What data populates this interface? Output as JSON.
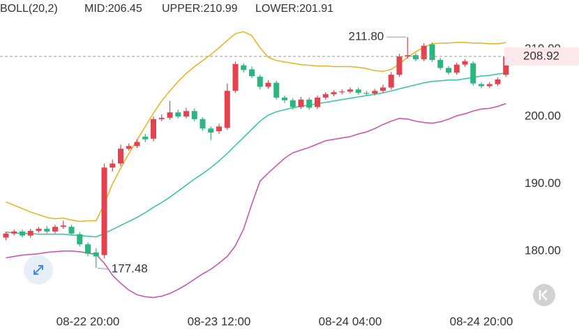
{
  "chart_data": {
    "type": "candlestick",
    "indicator": "BOLL(20,2)",
    "categories": [
      null,
      null,
      null,
      null,
      null,
      null,
      null,
      null,
      null,
      null,
      "08-22 20:00",
      null,
      null,
      null,
      null,
      null,
      null,
      null,
      null,
      null,
      null,
      null,
      null,
      null,
      null,
      null,
      "08-23 12:00",
      null,
      null,
      null,
      null,
      null,
      null,
      null,
      null,
      null,
      null,
      null,
      null,
      null,
      null,
      null,
      "08-24 04:00",
      null,
      null,
      null,
      null,
      null,
      null,
      null,
      null,
      null,
      null,
      null,
      null,
      null,
      null,
      null,
      "08-24 20:00",
      null,
      null,
      null
    ],
    "up_color": "#e3434f",
    "down_color": "#2bb67f",
    "open": [
      182.0,
      182.6,
      182.9,
      182.3,
      183.0,
      183.3,
      182.9,
      183.6,
      183.6,
      182.5,
      181.0,
      179.8,
      179.4,
      192.4,
      193.0,
      195.2,
      195.6,
      197.0,
      196.7,
      199.6,
      199.8,
      200.6,
      200.0,
      200.8,
      199.6,
      198.2,
      197.8,
      198.3,
      203.8,
      207.6,
      207.0,
      205.9,
      204.4,
      205.0,
      202.8,
      202.4,
      201.4,
      202.5,
      201.4,
      202.8,
      203.3,
      203.6,
      203.7,
      204.0,
      203.5,
      203.4,
      203.8,
      204.3,
      206.2,
      208.9,
      209.1,
      208.5,
      210.7,
      208.4,
      207.2,
      206.5,
      207.7,
      207.9,
      204.8,
      204.5,
      204.8,
      206.2
    ],
    "high": [
      182.9,
      183.2,
      183.2,
      183.3,
      183.6,
      183.7,
      183.9,
      184.5,
      183.9,
      182.8,
      181.3,
      180.4,
      193.0,
      193.6,
      195.8,
      196.0,
      196.6,
      197.4,
      200.0,
      200.3,
      202.3,
      201.0,
      201.3,
      201.2,
      199.9,
      198.5,
      198.9,
      204.9,
      208.2,
      207.9,
      207.4,
      206.2,
      205.4,
      205.3,
      203.1,
      202.7,
      202.9,
      202.8,
      203.1,
      203.6,
      203.9,
      204.0,
      204.3,
      204.3,
      203.8,
      204.1,
      204.7,
      206.6,
      209.3,
      211.8,
      209.4,
      210.9,
      211.0,
      208.7,
      207.5,
      208.0,
      208.5,
      208.2,
      205.1,
      205.1,
      205.8,
      209.2
    ],
    "low": [
      181.6,
      182.3,
      182.0,
      182.0,
      182.7,
      182.6,
      182.6,
      183.3,
      182.3,
      180.7,
      179.2,
      177.48,
      178.9,
      191.8,
      192.6,
      194.9,
      195.3,
      196.2,
      196.3,
      199.3,
      199.5,
      199.7,
      199.7,
      199.3,
      197.9,
      196.5,
      197.4,
      198.0,
      203.5,
      206.5,
      205.7,
      204.0,
      204.1,
      202.5,
      202.0,
      201.0,
      201.1,
      201.0,
      201.1,
      202.5,
      203.0,
      203.3,
      203.4,
      203.2,
      203.1,
      203.1,
      203.5,
      204.0,
      205.9,
      208.6,
      208.2,
      208.2,
      208.1,
      206.9,
      206.2,
      206.2,
      207.4,
      204.6,
      204.2,
      204.2,
      204.5,
      205.9
    ],
    "close": [
      182.6,
      182.9,
      182.3,
      183.0,
      183.3,
      182.9,
      183.6,
      183.8,
      182.6,
      181.0,
      179.6,
      179.2,
      192.4,
      193.0,
      195.2,
      195.6,
      196.2,
      196.6,
      199.6,
      199.8,
      200.6,
      200.0,
      200.8,
      199.6,
      198.2,
      197.6,
      198.5,
      203.8,
      207.8,
      206.9,
      206.0,
      204.4,
      205.0,
      202.8,
      202.4,
      201.4,
      202.5,
      201.3,
      202.8,
      203.3,
      203.6,
      203.7,
      204.0,
      203.5,
      203.4,
      203.8,
      204.3,
      206.2,
      208.9,
      209.1,
      208.5,
      210.5,
      208.4,
      207.2,
      206.5,
      207.7,
      208.2,
      204.9,
      204.5,
      204.8,
      205.5,
      208.92
    ],
    "max_label": "211.80",
    "min_label": "177.48",
    "bands": [
      {
        "name": "MID:206.45",
        "color": "#2ec4a4",
        "values": [
          182.8,
          182.7,
          182.6,
          182.6,
          182.5,
          182.5,
          182.5,
          182.5,
          182.4,
          182.3,
          182.2,
          182.1,
          182.6,
          183.2,
          183.8,
          184.4,
          185.0,
          185.7,
          186.5,
          187.2,
          188.0,
          188.9,
          189.8,
          190.7,
          191.5,
          192.4,
          193.4,
          194.5,
          195.7,
          196.9,
          198.1,
          199.3,
          200.2,
          200.7,
          201.0,
          201.3,
          201.5,
          201.7,
          201.9,
          202.1,
          202.3,
          202.5,
          202.7,
          202.9,
          203.1,
          203.3,
          203.5,
          203.8,
          204.1,
          204.4,
          204.7,
          205.0,
          205.2,
          205.3,
          205.4,
          205.4,
          205.6,
          205.8,
          206.0,
          206.1,
          206.3,
          206.45
        ]
      },
      {
        "name": "UPPER:210.99",
        "color": "#e9b21c",
        "values": [
          187.3,
          186.8,
          186.3,
          185.8,
          185.4,
          185.0,
          184.8,
          184.9,
          184.6,
          184.4,
          184.5,
          184.5,
          187.0,
          190.0,
          192.3,
          194.5,
          196.5,
          198.5,
          200.5,
          202.3,
          203.8,
          205.2,
          206.4,
          207.4,
          208.3,
          209.2,
          210.2,
          211.3,
          212.3,
          212.6,
          212.0,
          210.2,
          208.8,
          208.3,
          208.1,
          207.9,
          207.7,
          207.6,
          207.5,
          207.5,
          207.4,
          207.4,
          207.4,
          207.3,
          207.1,
          206.8,
          206.7,
          207.0,
          207.8,
          208.8,
          209.6,
          210.3,
          210.8,
          210.9,
          210.9,
          211.0,
          211.0,
          210.9,
          210.9,
          210.8,
          210.8,
          210.99
        ]
      },
      {
        "name": "LOWER:201.91",
        "color": "#d24aae",
        "values": [
          179.0,
          179.2,
          179.4,
          179.5,
          179.6,
          179.8,
          179.9,
          180.0,
          180.0,
          179.9,
          179.7,
          179.5,
          178.2,
          176.4,
          175.2,
          174.2,
          173.5,
          173.2,
          173.1,
          173.3,
          173.7,
          174.3,
          175.0,
          175.8,
          176.6,
          177.3,
          178.2,
          179.2,
          180.8,
          183.3,
          187.0,
          190.4,
          191.6,
          192.7,
          193.8,
          194.6,
          195.0,
          195.4,
          195.9,
          196.4,
          196.6,
          196.8,
          197.0,
          197.4,
          197.7,
          198.2,
          198.8,
          199.3,
          199.7,
          199.6,
          199.3,
          199.1,
          199.0,
          199.2,
          199.6,
          200.1,
          200.4,
          200.8,
          201.1,
          201.2,
          201.5,
          201.91
        ]
      }
    ],
    "ylim": [
      171.7,
      217.3
    ],
    "yticks": [
      {
        "value": 180,
        "label": "180.00"
      },
      {
        "value": 190,
        "label": "190.00"
      },
      {
        "value": 200,
        "label": "200.00"
      },
      {
        "value": 210,
        "label": "210.00"
      }
    ],
    "grid": false
  }
}
